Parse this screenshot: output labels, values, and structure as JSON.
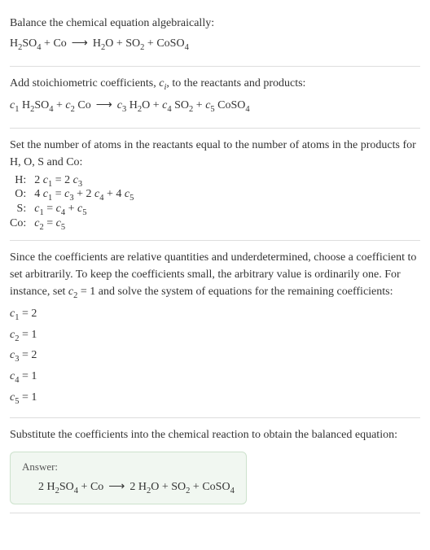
{
  "section1": {
    "title": "Balance the chemical equation algebraically:",
    "reactant1": "H",
    "reactant1_sub1": "2",
    "reactant1_mid": "SO",
    "reactant1_sub2": "4",
    "plus": " + ",
    "reactant2": "Co",
    "arrow": "⟶",
    "product1": "H",
    "product1_sub1": "2",
    "product1_mid": "O",
    "product2": "SO",
    "product2_sub1": "2",
    "product3": "CoSO",
    "product3_sub1": "4"
  },
  "section2": {
    "title_a": "Add stoichiometric coefficients, ",
    "title_ci": "c",
    "title_ci_sub": "i",
    "title_b": ", to the reactants and products:",
    "c1": "c",
    "c1s": "1",
    "c2": "c",
    "c2s": "2",
    "c3": "c",
    "c3s": "3",
    "c4": "c",
    "c4s": "4",
    "c5": "c",
    "c5s": "5",
    "sp": " "
  },
  "section3": {
    "title": "Set the number of atoms in the reactants equal to the number of atoms in the products for H, O, S and Co:",
    "rows": [
      {
        "label": "H:",
        "eq_a": "2 ",
        "eq_c1": "c",
        "eq_c1s": "1",
        "eq_mid": " = 2 ",
        "eq_c3": "c",
        "eq_c3s": "3"
      },
      {
        "label": "O:",
        "eq_a": "4 ",
        "eq_c1": "c",
        "eq_c1s": "1",
        "eq_mid": " = ",
        "eq_c3": "c",
        "eq_c3s": "3",
        "eq_p2": " + 2 ",
        "eq_c4": "c",
        "eq_c4s": "4",
        "eq_p3": " + 4 ",
        "eq_c5": "c",
        "eq_c5s": "5"
      },
      {
        "label": "S:",
        "eq_a": "",
        "eq_c1": "c",
        "eq_c1s": "1",
        "eq_mid": " = ",
        "eq_c4": "c",
        "eq_c4s": "4",
        "eq_p2": " + ",
        "eq_c5": "c",
        "eq_c5s": "5"
      },
      {
        "label": "Co:",
        "eq_a": "",
        "eq_c2": "c",
        "eq_c2s": "2",
        "eq_mid": " = ",
        "eq_c5": "c",
        "eq_c5s": "5"
      }
    ]
  },
  "section4": {
    "title_a": "Since the coefficients are relative quantities and underdetermined, choose a coefficient to set arbitrarily. To keep the coefficients small, the arbitrary value is ordinarily one. For instance, set ",
    "title_c": "c",
    "title_cs": "2",
    "title_b": " = 1 and solve the system of equations for the remaining coefficients:",
    "coefs": [
      {
        "c": "c",
        "s": "1",
        "v": " = 2"
      },
      {
        "c": "c",
        "s": "2",
        "v": " = 1"
      },
      {
        "c": "c",
        "s": "3",
        "v": " = 2"
      },
      {
        "c": "c",
        "s": "4",
        "v": " = 1"
      },
      {
        "c": "c",
        "s": "5",
        "v": " = 1"
      }
    ]
  },
  "section5": {
    "title": "Substitute the coefficients into the chemical reaction to obtain the balanced equation:",
    "answer_label": "Answer:",
    "coef1": "2 ",
    "coef3": "2 "
  }
}
